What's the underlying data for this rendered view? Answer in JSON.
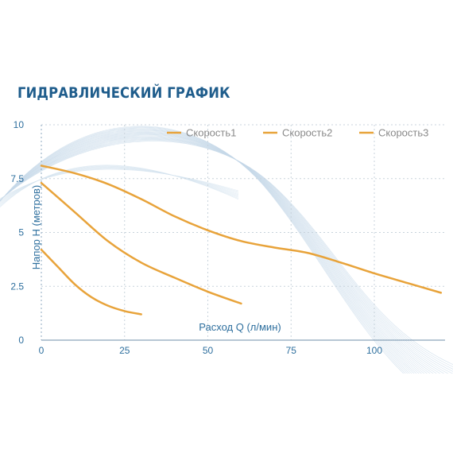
{
  "chart_data": {
    "type": "line",
    "title": "ГИДРАВЛИЧЕСКИЙ ГРАФИК",
    "xlabel": "Расход Q (л/мин)",
    "ylabel": "Напор H (метров)",
    "xlim": [
      0,
      122
    ],
    "ylim": [
      0,
      10
    ],
    "x_ticks": [
      "0",
      "25",
      "50",
      "75",
      "100"
    ],
    "y_ticks": [
      "0",
      "2.5",
      "5",
      "7.5",
      "10"
    ],
    "grid": true,
    "legend_position": "top-right",
    "series": [
      {
        "name": "Скорость1",
        "color": "#e8a33a",
        "x": [
          0,
          10,
          20,
          30,
          40,
          50,
          60,
          70,
          80,
          90,
          100,
          110,
          120
        ],
        "y": [
          8.1,
          7.75,
          7.25,
          6.55,
          5.75,
          5.1,
          4.6,
          4.3,
          4.05,
          3.6,
          3.1,
          2.65,
          2.2
        ]
      },
      {
        "name": "Скорость2",
        "color": "#e8a33a",
        "x": [
          0,
          10,
          20,
          30,
          40,
          50,
          60
        ],
        "y": [
          7.3,
          5.95,
          4.6,
          3.6,
          2.9,
          2.25,
          1.7
        ]
      },
      {
        "name": "Скорость3",
        "color": "#e8a33a",
        "x": [
          0,
          5,
          10,
          15,
          20,
          25,
          30
        ],
        "y": [
          4.2,
          3.4,
          2.6,
          2.0,
          1.6,
          1.35,
          1.2
        ]
      }
    ]
  }
}
